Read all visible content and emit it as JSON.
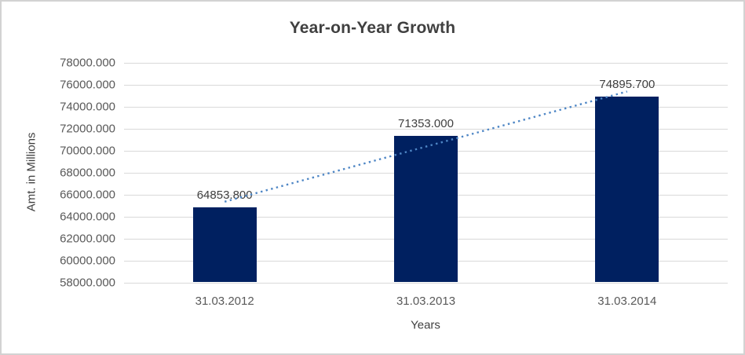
{
  "frame": {
    "background": "#ffffff",
    "border_color": "#d2d2d2"
  },
  "chart_data": {
    "type": "bar",
    "title": "Year-on-Year Growth",
    "categories": [
      "31.03.2012",
      "31.03.2013",
      "31.03.2014"
    ],
    "values": [
      64853.8,
      71353.0,
      74895.7
    ],
    "data_labels": [
      "64853.800",
      "71353.000",
      "74895.700"
    ],
    "xlabel": "Years",
    "ylabel": "Amt. in Millions",
    "ylim": [
      58000,
      78000
    ],
    "ytick_step": 2000,
    "ytick_labels": [
      "58000.000",
      "60000.000",
      "62000.000",
      "64000.000",
      "66000.000",
      "68000.000",
      "70000.000",
      "72000.000",
      "74000.000",
      "76000.000",
      "78000.000"
    ],
    "grid": true,
    "legend": "none",
    "trendline": {
      "type": "linear",
      "style": "dotted"
    },
    "colors": {
      "bar": "#002060",
      "trendline": "#4e86c5",
      "gridline": "#d9d9d9",
      "tick_text": "#595959",
      "data_label_text": "#404040",
      "title_text": "#404040"
    }
  }
}
